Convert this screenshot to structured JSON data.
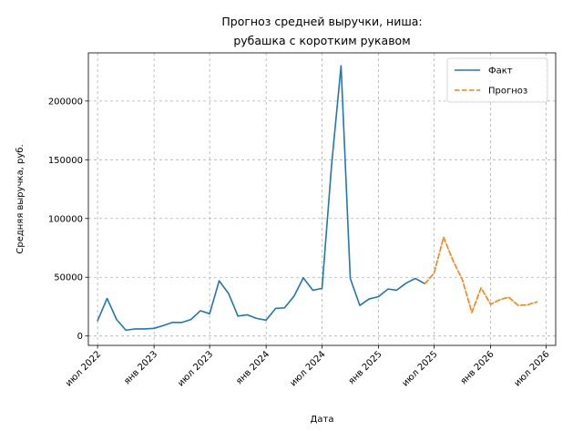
{
  "chart_data": {
    "type": "line",
    "title": [
      "Прогноз средней выручки, ниша:",
      "рубашка с коротким рукавом"
    ],
    "xlabel": "Дата",
    "ylabel": "Средняя выручка, руб.",
    "x_axis": {
      "type": "date",
      "range": [
        "2022-06-01",
        "2026-08-01"
      ],
      "ticks": [
        {
          "date": "2022-07-01",
          "label": "июл 2022"
        },
        {
          "date": "2023-01-01",
          "label": "янв 2023"
        },
        {
          "date": "2023-07-01",
          "label": "июл 2023"
        },
        {
          "date": "2024-01-01",
          "label": "янв 2024"
        },
        {
          "date": "2024-07-01",
          "label": "июл 2024"
        },
        {
          "date": "2025-01-01",
          "label": "янв 2025"
        },
        {
          "date": "2025-07-01",
          "label": "июл 2025"
        },
        {
          "date": "2026-01-01",
          "label": "янв 2026"
        },
        {
          "date": "2026-07-01",
          "label": "июл 2026"
        }
      ]
    },
    "y_axis": {
      "range": [
        -8000,
        241000
      ],
      "ticks": [
        0,
        50000,
        100000,
        150000,
        200000
      ]
    },
    "grid": true,
    "legend_placement": "top-right",
    "series": [
      {
        "name": "Факт",
        "color": "#1f77b4",
        "style": "solid",
        "points": [
          {
            "x": "2022-07-01",
            "y": 13000
          },
          {
            "x": "2022-08-01",
            "y": 32000
          },
          {
            "x": "2022-09-01",
            "y": 14000
          },
          {
            "x": "2022-10-01",
            "y": 5000
          },
          {
            "x": "2022-11-01",
            "y": 6000
          },
          {
            "x": "2022-12-01",
            "y": 6000
          },
          {
            "x": "2023-01-01",
            "y": 6500
          },
          {
            "x": "2023-02-01",
            "y": 9000
          },
          {
            "x": "2023-03-01",
            "y": 11500
          },
          {
            "x": "2023-04-01",
            "y": 11500
          },
          {
            "x": "2023-05-01",
            "y": 14000
          },
          {
            "x": "2023-06-01",
            "y": 21500
          },
          {
            "x": "2023-07-01",
            "y": 19000
          },
          {
            "x": "2023-08-01",
            "y": 47000
          },
          {
            "x": "2023-09-01",
            "y": 36000
          },
          {
            "x": "2023-10-01",
            "y": 17000
          },
          {
            "x": "2023-11-01",
            "y": 18000
          },
          {
            "x": "2023-12-01",
            "y": 15000
          },
          {
            "x": "2024-01-01",
            "y": 13500
          },
          {
            "x": "2024-02-01",
            "y": 23500
          },
          {
            "x": "2024-03-01",
            "y": 24000
          },
          {
            "x": "2024-04-01",
            "y": 34000
          },
          {
            "x": "2024-05-01",
            "y": 49500
          },
          {
            "x": "2024-06-01",
            "y": 39000
          },
          {
            "x": "2024-07-01",
            "y": 40500
          },
          {
            "x": "2024-08-01",
            "y": 145000
          },
          {
            "x": "2024-09-01",
            "y": 230000
          },
          {
            "x": "2024-10-01",
            "y": 49000
          },
          {
            "x": "2024-11-01",
            "y": 26000
          },
          {
            "x": "2024-12-01",
            "y": 31500
          },
          {
            "x": "2025-01-01",
            "y": 33500
          },
          {
            "x": "2025-02-01",
            "y": 40000
          },
          {
            "x": "2025-03-01",
            "y": 39000
          },
          {
            "x": "2025-04-01",
            "y": 45000
          },
          {
            "x": "2025-05-01",
            "y": 49000
          },
          {
            "x": "2025-06-01",
            "y": 44500
          }
        ]
      },
      {
        "name": "Прогноз",
        "color": "#ff7f0e",
        "style": "dashed",
        "points": [
          {
            "x": "2025-06-01",
            "y": 44500
          },
          {
            "x": "2025-07-01",
            "y": 53500
          },
          {
            "x": "2025-08-01",
            "y": 84000
          },
          {
            "x": "2025-09-01",
            "y": 64000
          },
          {
            "x": "2025-10-01",
            "y": 48000
          },
          {
            "x": "2025-11-01",
            "y": 20000
          },
          {
            "x": "2025-12-01",
            "y": 41000
          },
          {
            "x": "2026-01-01",
            "y": 27000
          },
          {
            "x": "2026-02-01",
            "y": 31000
          },
          {
            "x": "2026-03-01",
            "y": 33000
          },
          {
            "x": "2026-04-01",
            "y": 26000
          },
          {
            "x": "2026-05-01",
            "y": 26500
          },
          {
            "x": "2026-06-01",
            "y": 29000
          }
        ]
      }
    ]
  }
}
